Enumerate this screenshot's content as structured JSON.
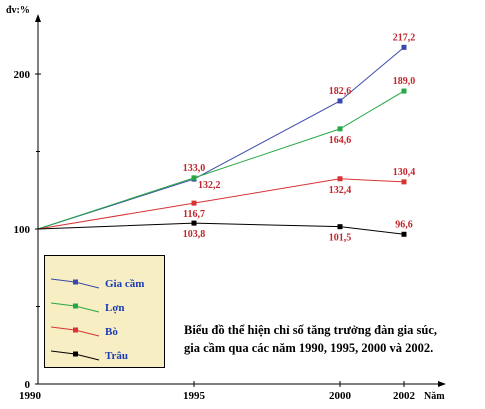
{
  "chart_data": {
    "type": "line",
    "title_lines": [
      "Biểu đồ thể hiện chỉ số tăng trưởng đàn gia súc,",
      "gia cầm qua các năm 1990, 1995, 2000 và 2002."
    ],
    "ylabel": "đv:%",
    "xlabel": "Năm",
    "x": [
      1990,
      1995,
      2000,
      2002
    ],
    "x_tick_labels": [
      "1990",
      "1995",
      "2000",
      "2002"
    ],
    "y_ticks": [
      0,
      100,
      200
    ],
    "y_tick_labels": [
      "0",
      "100",
      "200"
    ],
    "ylim": [
      0,
      220
    ],
    "grid": false,
    "legend_position": "bottom-left",
    "series": [
      {
        "name": "Gia cầm",
        "color": "#3949ab",
        "values": [
          100,
          132.2,
          182.6,
          217.2
        ],
        "labels": [
          "",
          "132,2",
          "182,6",
          "217,2"
        ],
        "label_pos": [
          "",
          "below-right",
          "above",
          "above"
        ]
      },
      {
        "name": "Lợn",
        "color": "#27a844",
        "values": [
          100,
          133.0,
          164.6,
          189.0
        ],
        "labels": [
          "",
          "133,0",
          "164,6",
          "189,0"
        ],
        "label_pos": [
          "",
          "above",
          "below",
          "above"
        ]
      },
      {
        "name": "Bò",
        "color": "#d83232",
        "values": [
          100,
          116.7,
          132.4,
          130.4
        ],
        "labels": [
          "",
          "116,7",
          "132,4",
          "130,4"
        ],
        "label_pos": [
          "",
          "below",
          "below",
          "above"
        ]
      },
      {
        "name": "Trâu",
        "color": "#000000",
        "values": [
          100,
          103.8,
          101.5,
          96.6
        ],
        "labels": [
          "",
          "103,8",
          "101,5",
          "96,6"
        ],
        "label_pos": [
          "",
          "below",
          "below",
          "above"
        ]
      }
    ]
  }
}
